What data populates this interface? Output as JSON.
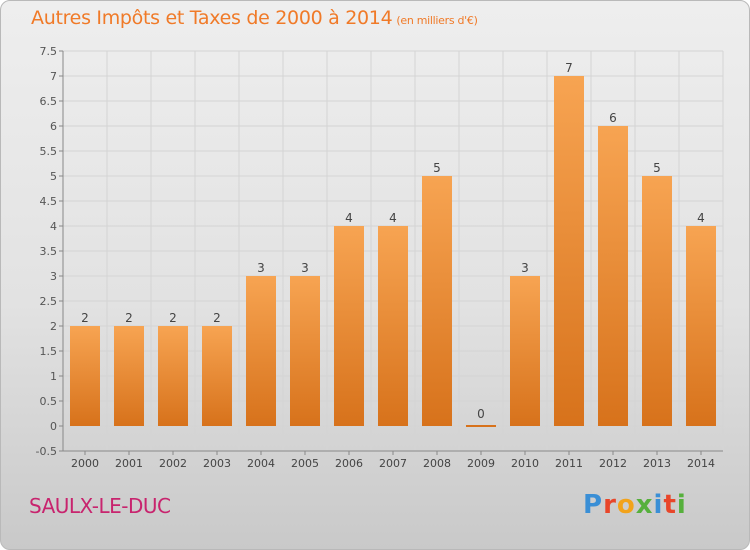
{
  "title": "Autres Impôts et Taxes de 2000 à 2014",
  "subtitle": "(en milliers d'€)",
  "commune": "SAULX-LE-DUC",
  "logo": "Proxiti",
  "colors": {
    "title": "#f07a28",
    "bar_top": "#f7a452",
    "bar_bottom": "#d7721b",
    "commune": "#c8246e",
    "logo": [
      "#3a8fd6",
      "#e8462a",
      "#f2a31b",
      "#56b03c",
      "#3a8fd6",
      "#e8462a",
      "#56b03c"
    ]
  },
  "chart_data": {
    "type": "bar",
    "categories": [
      "2000",
      "2001",
      "2002",
      "2003",
      "2004",
      "2005",
      "2006",
      "2007",
      "2008",
      "2009",
      "2010",
      "2011",
      "2012",
      "2013",
      "2014"
    ],
    "values": [
      2,
      2,
      2,
      2,
      3,
      3,
      4,
      4,
      5,
      0,
      3,
      7,
      6,
      5,
      4
    ],
    "data_labels": [
      "2",
      "2",
      "2",
      "2",
      "3",
      "3",
      "4",
      "4",
      "5",
      "0",
      "3",
      "7",
      "6",
      "5",
      "4"
    ],
    "ylim": [
      -0.5,
      7.5
    ],
    "yticks": [
      "-0.5",
      "0",
      "0.5",
      "1",
      "1.5",
      "2",
      "2.5",
      "3",
      "3.5",
      "4",
      "4.5",
      "5",
      "5.5",
      "6",
      "6.5",
      "7",
      "7.5"
    ],
    "ytick_values": [
      -0.5,
      0,
      0.5,
      1,
      1.5,
      2,
      2.5,
      3,
      3.5,
      4,
      4.5,
      5,
      5.5,
      6,
      6.5,
      7,
      7.5
    ],
    "grid": true,
    "legend": "none"
  }
}
